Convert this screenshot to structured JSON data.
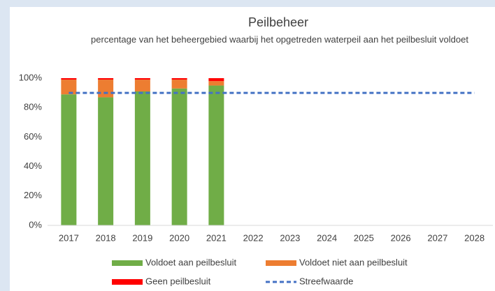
{
  "chart_data": {
    "type": "bar",
    "stacked": true,
    "title": "Peilbeheer",
    "subtitle": "percentage van het beheergebied waarbij het opgetreden waterpeil aan het peilbesluit voldoet",
    "categories": [
      "2017",
      "2018",
      "2019",
      "2020",
      "2021",
      "2022",
      "2023",
      "2024",
      "2025",
      "2026",
      "2027",
      "2028"
    ],
    "series": [
      {
        "name": "Voldoet aan peilbesluit",
        "type": "bar",
        "color": "#70ad47",
        "values": [
          89,
          87,
          91,
          93,
          95,
          null,
          null,
          null,
          null,
          null,
          null,
          null
        ]
      },
      {
        "name": "Voldoet niet aan peilbesluit",
        "type": "bar",
        "color": "#ed7d31",
        "values": [
          10,
          12,
          8,
          6,
          3,
          null,
          null,
          null,
          null,
          null,
          null,
          null
        ]
      },
      {
        "name": "Geen peilbesluit",
        "type": "bar",
        "color": "#ff0000",
        "values": [
          1,
          1,
          1,
          1,
          2,
          null,
          null,
          null,
          null,
          null,
          null,
          null
        ]
      },
      {
        "name": "Streefwaarde",
        "type": "line",
        "dashed": true,
        "color": "#4472c4",
        "values": [
          90,
          90,
          90,
          90,
          90,
          90,
          90,
          90,
          90,
          90,
          90,
          90
        ]
      }
    ],
    "ylim": [
      0,
      100
    ],
    "yticks": [
      {
        "value": 0,
        "label": "0%"
      },
      {
        "value": 20,
        "label": "20%"
      },
      {
        "value": 40,
        "label": "40%"
      },
      {
        "value": 60,
        "label": "60%"
      },
      {
        "value": 80,
        "label": "80%"
      },
      {
        "value": 100,
        "label": "100%"
      }
    ],
    "grid": false,
    "legend": "bottom"
  }
}
